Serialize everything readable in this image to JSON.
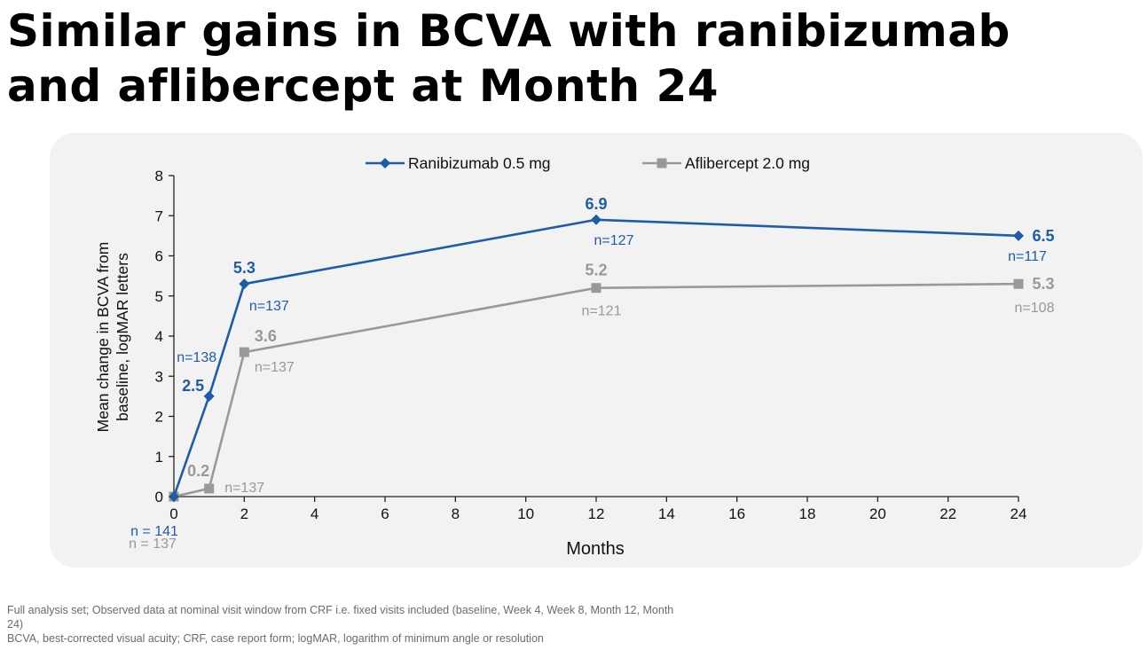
{
  "title_line1": "Similar gains in BCVA with ranibizumab",
  "title_line2": "and aflibercept at Month 24",
  "chart_data": {
    "type": "line",
    "xlabel": "Months",
    "ylabel_line1": "Mean change in BCVA from",
    "ylabel_line2": "baseline, logMAR letters",
    "xlim": [
      0,
      24
    ],
    "ylim": [
      0,
      8
    ],
    "xticks": [
      0,
      2,
      4,
      6,
      8,
      10,
      12,
      14,
      16,
      18,
      20,
      22,
      24
    ],
    "yticks": [
      0,
      1,
      2,
      3,
      4,
      5,
      6,
      7,
      8
    ],
    "grid": false,
    "legend_position": "top",
    "series": [
      {
        "name": "Ranibizumab 0.5 mg",
        "color": "#1f5ca8",
        "marker": "diamond",
        "x": [
          0,
          1,
          2,
          12,
          24
        ],
        "y": [
          0,
          2.5,
          5.3,
          6.9,
          6.5
        ],
        "value_labels": [
          "",
          "2.5",
          "5.3",
          "6.9",
          "6.5"
        ],
        "n_labels": [
          "n = 141",
          "n=138",
          "n=137",
          "n=127",
          "n=117"
        ]
      },
      {
        "name": "Aflibercept 2.0 mg",
        "color": "#999999",
        "marker": "square",
        "x": [
          0,
          1,
          2,
          12,
          24
        ],
        "y": [
          0,
          0.2,
          3.6,
          5.2,
          5.3
        ],
        "value_labels": [
          "",
          "0.2",
          "3.6",
          "5.2",
          "5.3"
        ],
        "n_labels": [
          "n = 137",
          "n=137",
          "n=137",
          "n=121",
          "n=108"
        ]
      }
    ]
  },
  "footnotes": [
    "Full analysis set; Observed data at nominal visit window from CRF i.e. fixed visits included (baseline, Week 4, Week 8, Month 12, Month 24)",
    "BCVA, best-corrected visual acuity; CRF, case report form; logMAR, logarithm of minimum angle or resolution"
  ]
}
